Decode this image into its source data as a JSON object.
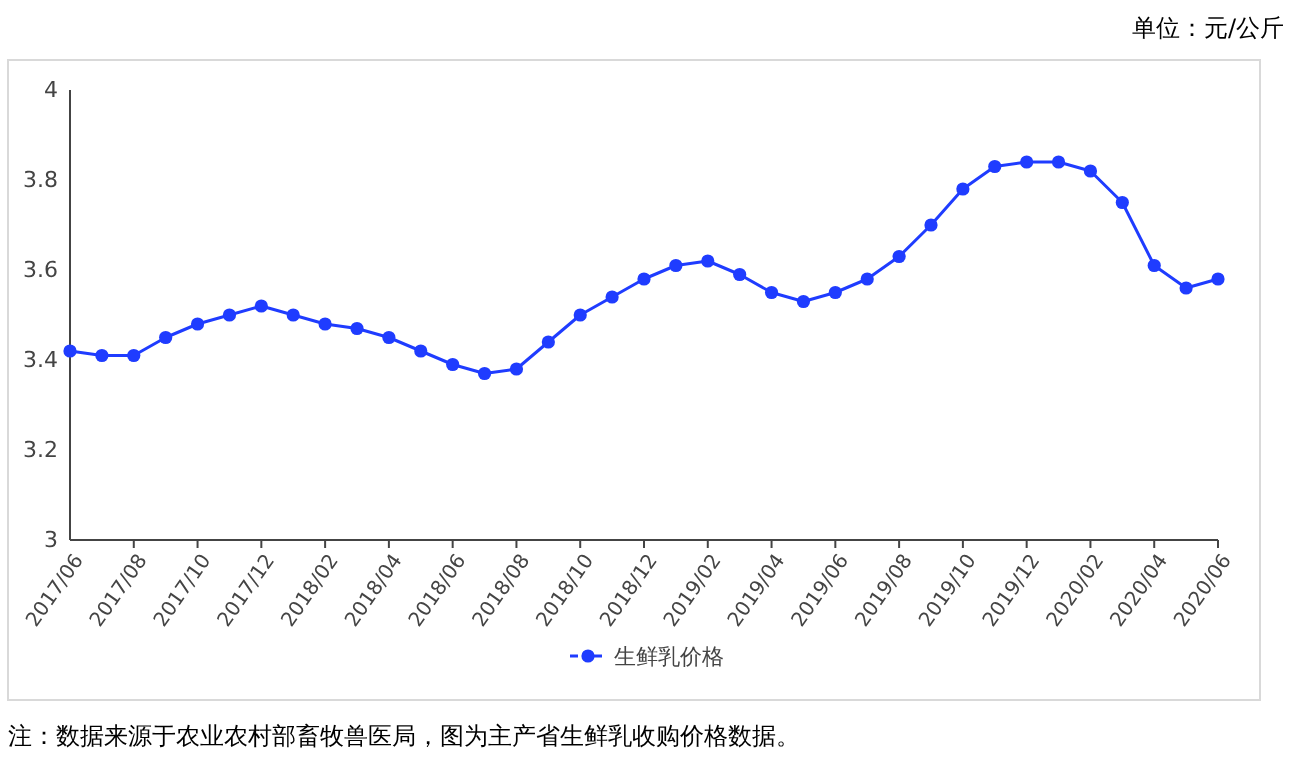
{
  "chart_data": {
    "type": "line",
    "subtitle": "单位：元/公斤",
    "categories": [
      "2017/06",
      null,
      "2017/08",
      null,
      "2017/10",
      null,
      "2017/12",
      null,
      "2018/02",
      null,
      "2018/04",
      null,
      "2018/06",
      null,
      "2018/08",
      null,
      "2018/10",
      null,
      "2018/12",
      null,
      "2019/02",
      null,
      "2019/04",
      null,
      "2019/06",
      null,
      "2019/08",
      null,
      "2019/10",
      null,
      "2019/12",
      null,
      "2020/02",
      null,
      "2020/04",
      null,
      "2020/06"
    ],
    "series": [
      {
        "name": "生鲜乳价格",
        "color": "#1f3cff",
        "values": [
          3.42,
          3.41,
          3.41,
          3.45,
          3.48,
          3.5,
          3.52,
          3.5,
          3.48,
          3.47,
          3.45,
          3.42,
          3.39,
          3.37,
          3.38,
          3.44,
          3.5,
          3.54,
          3.58,
          3.61,
          3.62,
          3.59,
          3.55,
          3.53,
          3.55,
          3.58,
          3.63,
          3.7,
          3.78,
          3.83,
          3.84,
          3.84,
          3.82,
          3.75,
          3.61,
          3.56,
          3.58
        ]
      }
    ],
    "ylim": [
      3,
      4
    ],
    "yticks": [
      3,
      3.2,
      3.4,
      3.6,
      3.8,
      4
    ],
    "marker": "circle",
    "legend": "bottom",
    "grid": false,
    "annotations": [
      "注：数据来源于农业农村部畜牧兽医局，图为主产省生鲜乳收购价格数据。"
    ]
  }
}
